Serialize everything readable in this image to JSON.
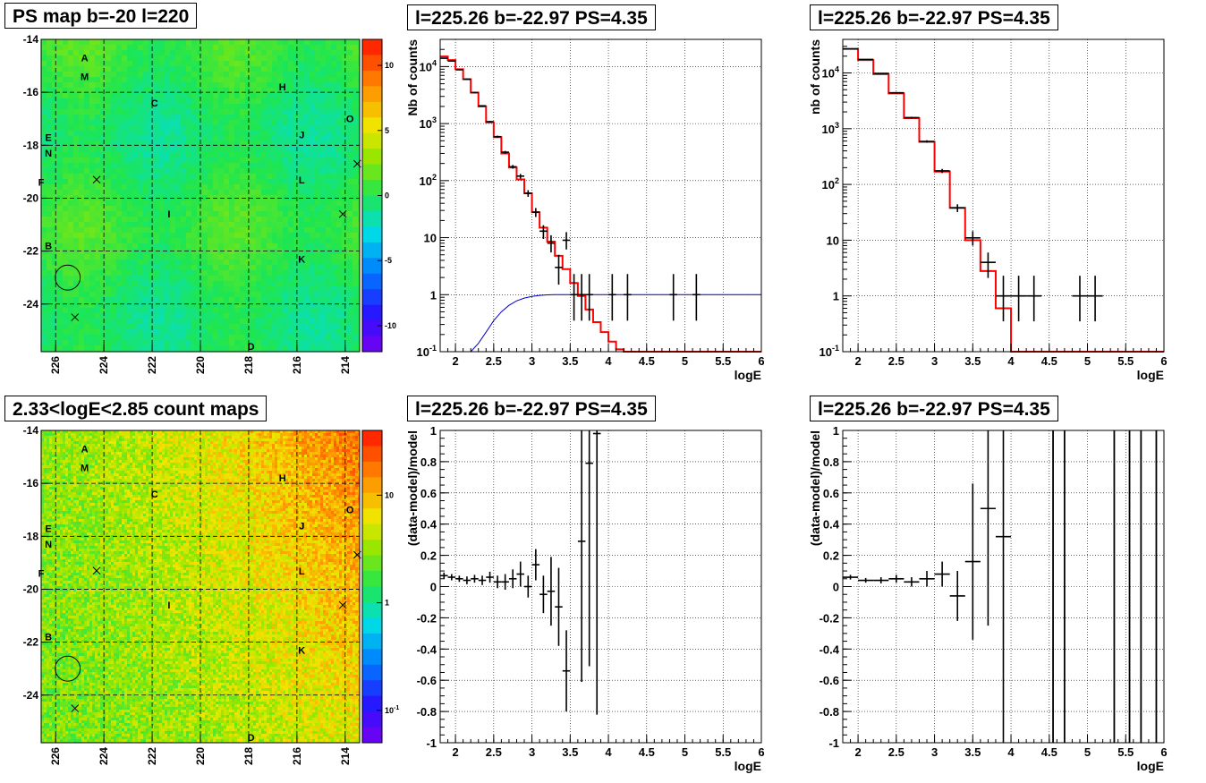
{
  "colors": {
    "frame": "#000000",
    "grid": "#000000",
    "model_hist": "#ff0000",
    "blue_curve": "#0000cc",
    "data_points": "#000000",
    "map_base_top": "#22dd55",
    "count_low": "#aadd00",
    "count_high": "#ff2200"
  },
  "panels": [
    {
      "id": "ps_map",
      "title": "PS map b=-20 l=220"
    },
    {
      "id": "spec_full",
      "title": "l=225.26 b=-22.97 PS=4.35"
    },
    {
      "id": "spec_diffuse",
      "title": "l=225.26 b=-22.97 PS=4.35"
    },
    {
      "id": "count_map",
      "title": "2.33<logE<2.85 count maps"
    },
    {
      "id": "resid_full",
      "title": "l=225.26 b=-22.97 PS=4.35"
    },
    {
      "id": "resid_diffuse",
      "title": "l=225.26 b=-22.97 PS=4.35"
    }
  ],
  "chart_data": [
    {
      "id": "ps_map",
      "type": "heatmap",
      "title": "PS map b=-20 l=220",
      "x_ticks": [
        "226",
        "224",
        "222",
        "220",
        "218",
        "216",
        "214"
      ],
      "y_ticks": [
        "-14",
        "-16",
        "-18",
        "-20",
        "-22",
        "-24"
      ],
      "xlim": [
        226.6,
        213.4
      ],
      "ylim": [
        -25.8,
        -14
      ],
      "colorbar_ticks": [
        "10",
        "5",
        "0",
        "-5",
        "-10"
      ],
      "colorbar_range": [
        -12,
        12
      ],
      "sources": [
        {
          "label": "A",
          "l": 224.8,
          "b": -14.7
        },
        {
          "label": "M",
          "l": 224.8,
          "b": -15.4
        },
        {
          "label": "C",
          "l": 221.9,
          "b": -16.4
        },
        {
          "label": "H",
          "l": 216.6,
          "b": -15.8
        },
        {
          "label": "O",
          "l": 213.8,
          "b": -17.0
        },
        {
          "label": "J",
          "l": 215.8,
          "b": -17.6
        },
        {
          "label": "E",
          "l": 226.3,
          "b": -17.7
        },
        {
          "label": "N",
          "l": 226.3,
          "b": -18.3
        },
        {
          "label": "F",
          "l": 226.6,
          "b": -19.4
        },
        {
          "label": "L",
          "l": 215.8,
          "b": -19.3
        },
        {
          "label": "I",
          "l": 221.3,
          "b": -20.6
        },
        {
          "label": "B",
          "l": 226.3,
          "b": -21.8
        },
        {
          "label": "K",
          "l": 215.8,
          "b": -22.3
        },
        {
          "label": "D",
          "l": 217.9,
          "b": -25.6
        }
      ],
      "crosses": [
        {
          "l": 224.3,
          "b": -19.3
        },
        {
          "l": 213.5,
          "b": -18.7
        },
        {
          "l": 214.1,
          "b": -20.6
        },
        {
          "l": 225.2,
          "b": -24.5
        }
      ],
      "circle": {
        "l": 225.5,
        "b": -23.0,
        "r_deg": 0.5
      }
    },
    {
      "id": "spec_full",
      "type": "line",
      "title": "l=225.26 b=-22.97 PS=4.35",
      "xlabel": "logE",
      "ylabel": "Nb of counts",
      "xlim": [
        1.8,
        6
      ],
      "ylim": [
        0.1,
        30000
      ],
      "log_y": true,
      "grid": true,
      "x_ticks": [
        "2",
        "2.5",
        "3",
        "3.5",
        "4",
        "4.5",
        "5",
        "5.5",
        "6"
      ],
      "y_ticks": [
        {
          "v": 0.1,
          "label": "10^-1"
        },
        {
          "v": 1,
          "label": "1"
        },
        {
          "v": 10,
          "label": "10"
        },
        {
          "v": 100,
          "label": "10^2"
        },
        {
          "v": 1000,
          "label": "10^3"
        },
        {
          "v": 10000,
          "label": "10^4"
        }
      ],
      "model_edges": [
        1.8,
        1.9,
        2.0,
        2.1,
        2.2,
        2.3,
        2.4,
        2.5,
        2.6,
        2.7,
        2.8,
        2.9,
        3.0,
        3.1,
        3.2,
        3.3,
        3.4,
        3.5,
        3.6,
        3.7,
        3.8,
        3.9,
        4.0,
        4.1,
        4.2,
        6.0
      ],
      "model_values": [
        15000,
        13000,
        9000,
        6000,
        3500,
        2000,
        1050,
        580,
        300,
        170,
        105,
        60,
        28,
        15,
        8.5,
        4.8,
        2.8,
        1.6,
        0.95,
        0.55,
        0.33,
        0.22,
        0.15,
        0.11,
        0.1
      ],
      "blue_curve": {
        "x": [
          2.2,
          2.3,
          2.4,
          2.5,
          2.6,
          2.7,
          2.8,
          2.9,
          3.0,
          3.1,
          3.2,
          3.3,
          3.4,
          3.5,
          3.6,
          3.7,
          3.8,
          6.0
        ],
        "y": [
          0.1,
          0.14,
          0.22,
          0.35,
          0.5,
          0.65,
          0.78,
          0.87,
          0.93,
          0.97,
          0.99,
          1.0,
          1.0,
          1.0,
          1.0,
          1.0,
          1.0,
          1.0
        ]
      },
      "points": [
        {
          "x": 1.85,
          "y": 14000,
          "xerr": 0.05,
          "ylo": 13800,
          "yhi": 14200
        },
        {
          "x": 1.95,
          "y": 12500,
          "xerr": 0.05,
          "ylo": 12300,
          "yhi": 12700
        },
        {
          "x": 2.05,
          "y": 8800,
          "xerr": 0.05,
          "ylo": 8600,
          "yhi": 9000
        },
        {
          "x": 2.15,
          "y": 6000,
          "xerr": 0.05,
          "ylo": 5850,
          "yhi": 6150
        },
        {
          "x": 2.25,
          "y": 3500,
          "xerr": 0.05,
          "ylo": 3400,
          "yhi": 3600
        },
        {
          "x": 2.35,
          "y": 2050,
          "xerr": 0.05,
          "ylo": 1990,
          "yhi": 2110
        },
        {
          "x": 2.45,
          "y": 1080,
          "xerr": 0.05,
          "ylo": 1040,
          "yhi": 1120
        },
        {
          "x": 2.55,
          "y": 590,
          "xerr": 0.05,
          "ylo": 565,
          "yhi": 615
        },
        {
          "x": 2.65,
          "y": 315,
          "xerr": 0.05,
          "ylo": 298,
          "yhi": 332
        },
        {
          "x": 2.75,
          "y": 175,
          "xerr": 0.05,
          "ylo": 162,
          "yhi": 188
        },
        {
          "x": 2.85,
          "y": 120,
          "xerr": 0.05,
          "ylo": 109,
          "yhi": 131
        },
        {
          "x": 2.95,
          "y": 60,
          "xerr": 0.05,
          "ylo": 52,
          "yhi": 68
        },
        {
          "x": 3.05,
          "y": 28,
          "xerr": 0.05,
          "ylo": 23,
          "yhi": 33
        },
        {
          "x": 3.15,
          "y": 13,
          "xerr": 0.05,
          "ylo": 9.5,
          "yhi": 16.5
        },
        {
          "x": 3.25,
          "y": 8,
          "xerr": 0.05,
          "ylo": 5.5,
          "yhi": 11
        },
        {
          "x": 3.35,
          "y": 3,
          "xerr": 0.05,
          "ylo": 1.5,
          "yhi": 5
        },
        {
          "x": 3.45,
          "y": 9,
          "xerr": 0.05,
          "ylo": 6.2,
          "yhi": 12.5
        },
        {
          "x": 3.55,
          "y": 1,
          "xerr": 0.05,
          "ylo": 0.35,
          "yhi": 2.3
        },
        {
          "x": 3.65,
          "y": 1,
          "xerr": 0.05,
          "ylo": 0.35,
          "yhi": 2.3
        },
        {
          "x": 3.75,
          "y": 1,
          "xerr": 0.05,
          "ylo": 0.35,
          "yhi": 2.3
        },
        {
          "x": 4.05,
          "y": 1,
          "xerr": 0.05,
          "ylo": 0.35,
          "yhi": 2.3
        },
        {
          "x": 4.25,
          "y": 1,
          "xerr": 0.05,
          "ylo": 0.35,
          "yhi": 2.3
        },
        {
          "x": 4.85,
          "y": 1,
          "xerr": 0.05,
          "ylo": 0.35,
          "yhi": 2.3
        },
        {
          "x": 5.15,
          "y": 1,
          "xerr": 0.05,
          "ylo": 0.35,
          "yhi": 2.3
        }
      ]
    },
    {
      "id": "spec_diffuse",
      "type": "line",
      "title": "l=225.26 b=-22.97 PS=4.35",
      "xlabel": "logE",
      "ylabel": "nb of counts",
      "xlim": [
        1.8,
        6
      ],
      "ylim": [
        0.1,
        40000
      ],
      "log_y": true,
      "grid": true,
      "x_ticks": [
        "2",
        "2.5",
        "3",
        "3.5",
        "4",
        "4.5",
        "5",
        "5.5",
        "6"
      ],
      "y_ticks": [
        {
          "v": 0.1,
          "label": "10^-1"
        },
        {
          "v": 1,
          "label": "1"
        },
        {
          "v": 10,
          "label": "10"
        },
        {
          "v": 100,
          "label": "10^2"
        },
        {
          "v": 1000,
          "label": "10^3"
        },
        {
          "v": 10000,
          "label": "10^4"
        }
      ],
      "model_edges": [
        1.8,
        2.0,
        2.2,
        2.4,
        2.6,
        2.8,
        3.0,
        3.2,
        3.4,
        3.6,
        3.8,
        4.0,
        6.0
      ],
      "model_values": [
        27000,
        17000,
        9500,
        4300,
        1550,
        580,
        170,
        38,
        10,
        2.8,
        0.6,
        0.1
      ],
      "points": [
        {
          "x": 1.9,
          "y": 27000,
          "xerr": 0.1,
          "ylo": 26600,
          "yhi": 27400
        },
        {
          "x": 2.1,
          "y": 17500,
          "xerr": 0.1,
          "ylo": 17200,
          "yhi": 17800
        },
        {
          "x": 2.3,
          "y": 9800,
          "xerr": 0.1,
          "ylo": 9600,
          "yhi": 10000
        },
        {
          "x": 2.5,
          "y": 4400,
          "xerr": 0.1,
          "ylo": 4250,
          "yhi": 4550
        },
        {
          "x": 2.7,
          "y": 1580,
          "xerr": 0.1,
          "ylo": 1520,
          "yhi": 1640
        },
        {
          "x": 2.9,
          "y": 590,
          "xerr": 0.1,
          "ylo": 560,
          "yhi": 620
        },
        {
          "x": 3.1,
          "y": 175,
          "xerr": 0.1,
          "ylo": 160,
          "yhi": 190
        },
        {
          "x": 3.3,
          "y": 38,
          "xerr": 0.1,
          "ylo": 32,
          "yhi": 44
        },
        {
          "x": 3.5,
          "y": 11,
          "xerr": 0.1,
          "ylo": 8,
          "yhi": 14.5
        },
        {
          "x": 3.7,
          "y": 4,
          "xerr": 0.1,
          "ylo": 2.1,
          "yhi": 6
        },
        {
          "x": 3.9,
          "y": 1,
          "xerr": 0.1,
          "ylo": 0.35,
          "yhi": 2.3
        },
        {
          "x": 4.1,
          "y": 1,
          "xerr": 0.1,
          "ylo": 0.35,
          "yhi": 2.3
        },
        {
          "x": 4.3,
          "y": 1,
          "xerr": 0.1,
          "ylo": 0.35,
          "yhi": 2.3
        },
        {
          "x": 4.9,
          "y": 1,
          "xerr": 0.1,
          "ylo": 0.35,
          "yhi": 2.3
        },
        {
          "x": 5.1,
          "y": 1,
          "xerr": 0.1,
          "ylo": 0.35,
          "yhi": 2.3
        }
      ]
    },
    {
      "id": "count_map",
      "type": "heatmap",
      "title": "2.33<logE<2.85 count maps",
      "x_ticks": [
        "226",
        "224",
        "222",
        "220",
        "218",
        "216",
        "214"
      ],
      "y_ticks": [
        "-14",
        "-16",
        "-18",
        "-20",
        "-22",
        "-24"
      ],
      "xlim": [
        226.6,
        213.4
      ],
      "ylim": [
        -25.8,
        -14
      ],
      "colorbar_ticks": [
        {
          "v": 10,
          "label": "10"
        },
        {
          "v": 1,
          "label": "1"
        },
        {
          "v": 0.1,
          "label": "10^-1"
        }
      ],
      "colorbar_log_range": [
        0.05,
        40
      ],
      "sources": "same as ps_map",
      "crosses": "same as ps_map",
      "circle": "same as ps_map"
    },
    {
      "id": "resid_full",
      "type": "scatter",
      "title": "l=225.26 b=-22.97 PS=4.35",
      "xlabel": "logE",
      "ylabel": "(data-model)/model",
      "xlim": [
        1.8,
        6
      ],
      "ylim": [
        -1,
        1
      ],
      "grid": true,
      "x_ticks": [
        "2",
        "2.5",
        "3",
        "3.5",
        "4",
        "4.5",
        "5",
        "5.5",
        "6"
      ],
      "y_ticks": [
        "1",
        "0.8",
        "0.6",
        "0.4",
        "0.2",
        "0",
        "-0.2",
        "-0.4",
        "-0.6",
        "-0.8",
        "-1"
      ],
      "points": [
        {
          "x": 1.85,
          "y": 0.07,
          "xerr": 0.05,
          "err": 0.02
        },
        {
          "x": 1.95,
          "y": 0.06,
          "xerr": 0.05,
          "err": 0.02
        },
        {
          "x": 2.05,
          "y": 0.05,
          "xerr": 0.05,
          "err": 0.02
        },
        {
          "x": 2.15,
          "y": 0.04,
          "xerr": 0.05,
          "err": 0.025
        },
        {
          "x": 2.25,
          "y": 0.05,
          "xerr": 0.05,
          "err": 0.025
        },
        {
          "x": 2.35,
          "y": 0.04,
          "xerr": 0.05,
          "err": 0.03
        },
        {
          "x": 2.45,
          "y": 0.06,
          "xerr": 0.05,
          "err": 0.035
        },
        {
          "x": 2.55,
          "y": 0.03,
          "xerr": 0.05,
          "err": 0.04
        },
        {
          "x": 2.65,
          "y": 0.03,
          "xerr": 0.05,
          "err": 0.05
        },
        {
          "x": 2.75,
          "y": 0.05,
          "xerr": 0.05,
          "err": 0.06
        },
        {
          "x": 2.85,
          "y": 0.08,
          "xerr": 0.05,
          "err": 0.08
        },
        {
          "x": 2.95,
          "y": 0.0,
          "xerr": 0.05,
          "err": 0.07
        },
        {
          "x": 3.05,
          "y": 0.14,
          "xerr": 0.05,
          "err": 0.1
        },
        {
          "x": 3.15,
          "y": -0.05,
          "xerr": 0.05,
          "err": 0.12
        },
        {
          "x": 3.25,
          "y": -0.03,
          "xerr": 0.05,
          "err": 0.22
        },
        {
          "x": 3.35,
          "y": -0.13,
          "xerr": 0.05,
          "err": 0.25
        },
        {
          "x": 3.45,
          "y": -0.54,
          "xerr": 0.05,
          "err": 0.26
        },
        {
          "x": 3.65,
          "y": 0.29,
          "xerr": 0.05,
          "err": 0.9
        },
        {
          "x": 3.75,
          "y": 0.79,
          "xerr": 0.05,
          "err": 1.3
        },
        {
          "x": 3.85,
          "y": 0.98,
          "xerr": 0.05,
          "err": 1.8
        }
      ]
    },
    {
      "id": "resid_diffuse",
      "type": "scatter",
      "title": "l=225.26 b=-22.97 PS=4.35",
      "xlabel": "logE",
      "ylabel": "(data-model)/model",
      "xlim": [
        1.8,
        6
      ],
      "ylim": [
        -1,
        1
      ],
      "grid": true,
      "x_ticks": [
        "2",
        "2.5",
        "3",
        "3.5",
        "4",
        "4.5",
        "5",
        "5.5",
        "6"
      ],
      "y_ticks": [
        "1",
        "0.8",
        "0.6",
        "0.4",
        "0.2",
        "0",
        "-0.2",
        "-0.4",
        "-0.6",
        "-0.8",
        "-1"
      ],
      "points": [
        {
          "x": 1.9,
          "y": 0.06,
          "xerr": 0.1,
          "err": 0.015
        },
        {
          "x": 2.1,
          "y": 0.04,
          "xerr": 0.1,
          "err": 0.015
        },
        {
          "x": 2.3,
          "y": 0.04,
          "xerr": 0.1,
          "err": 0.02
        },
        {
          "x": 2.5,
          "y": 0.05,
          "xerr": 0.1,
          "err": 0.025
        },
        {
          "x": 2.7,
          "y": 0.03,
          "xerr": 0.1,
          "err": 0.03
        },
        {
          "x": 2.9,
          "y": 0.05,
          "xerr": 0.1,
          "err": 0.05
        },
        {
          "x": 3.1,
          "y": 0.08,
          "xerr": 0.1,
          "err": 0.08
        },
        {
          "x": 3.3,
          "y": -0.06,
          "xerr": 0.1,
          "err": 0.16
        },
        {
          "x": 3.5,
          "y": 0.16,
          "xerr": 0.1,
          "err": 0.5
        },
        {
          "x": 3.7,
          "y": 0.5,
          "xerr": 0.1,
          "err": 0.75
        },
        {
          "x": 3.9,
          "y": 0.32,
          "xerr": 0.1,
          "err": 1.4
        }
      ],
      "vertical_error_bars_x": [
        4.55,
        4.7,
        5.35,
        5.55,
        5.7,
        5.9
      ]
    }
  ]
}
